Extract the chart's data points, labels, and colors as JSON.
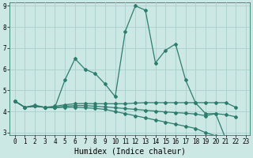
{
  "title": "",
  "xlabel": "Humidex (Indice chaleur)",
  "x": [
    0,
    1,
    2,
    3,
    4,
    5,
    6,
    7,
    8,
    9,
    10,
    11,
    12,
    13,
    14,
    15,
    16,
    17,
    18,
    19,
    20,
    21,
    22,
    23
  ],
  "lines": [
    [
      4.5,
      4.2,
      4.3,
      4.2,
      4.2,
      5.5,
      6.5,
      6.0,
      5.8,
      5.3,
      4.7,
      7.8,
      9.0,
      8.8,
      6.3,
      6.9,
      7.2,
      5.5,
      4.4,
      3.9,
      3.9,
      2.7,
      2.6,
      null
    ],
    [
      4.5,
      4.2,
      4.25,
      4.2,
      4.25,
      4.32,
      4.37,
      4.38,
      4.37,
      4.37,
      4.37,
      4.37,
      4.4,
      4.42,
      4.42,
      4.42,
      4.42,
      4.42,
      4.42,
      4.42,
      4.42,
      4.42,
      4.2,
      null
    ],
    [
      4.5,
      4.2,
      4.25,
      4.2,
      4.2,
      4.25,
      4.28,
      4.28,
      4.25,
      4.22,
      4.18,
      4.14,
      4.1,
      4.06,
      4.02,
      3.98,
      3.95,
      3.92,
      3.88,
      3.8,
      3.9,
      3.85,
      3.75,
      null
    ],
    [
      4.5,
      4.2,
      4.25,
      4.2,
      4.18,
      4.2,
      4.2,
      4.18,
      4.15,
      4.1,
      4.0,
      3.9,
      3.8,
      3.7,
      3.6,
      3.5,
      3.4,
      3.3,
      3.2,
      3.0,
      2.85,
      2.7,
      2.6,
      null
    ]
  ],
  "line_color": "#2d7d6e",
  "bg_color": "#cce8e5",
  "grid_color": "#aacfcc",
  "ylim_min": 2.9,
  "ylim_max": 9.15,
  "xlim_min": -0.5,
  "xlim_max": 23.4,
  "yticks": [
    3,
    4,
    5,
    6,
    7,
    8,
    9
  ],
  "xticks": [
    0,
    1,
    2,
    3,
    4,
    5,
    6,
    7,
    8,
    9,
    10,
    11,
    12,
    13,
    14,
    15,
    16,
    17,
    18,
    19,
    20,
    21,
    22,
    23
  ],
  "tick_fontsize": 5.5,
  "xlabel_fontsize": 7,
  "marker": "D",
  "marker_size": 2.0,
  "line_width": 0.9
}
